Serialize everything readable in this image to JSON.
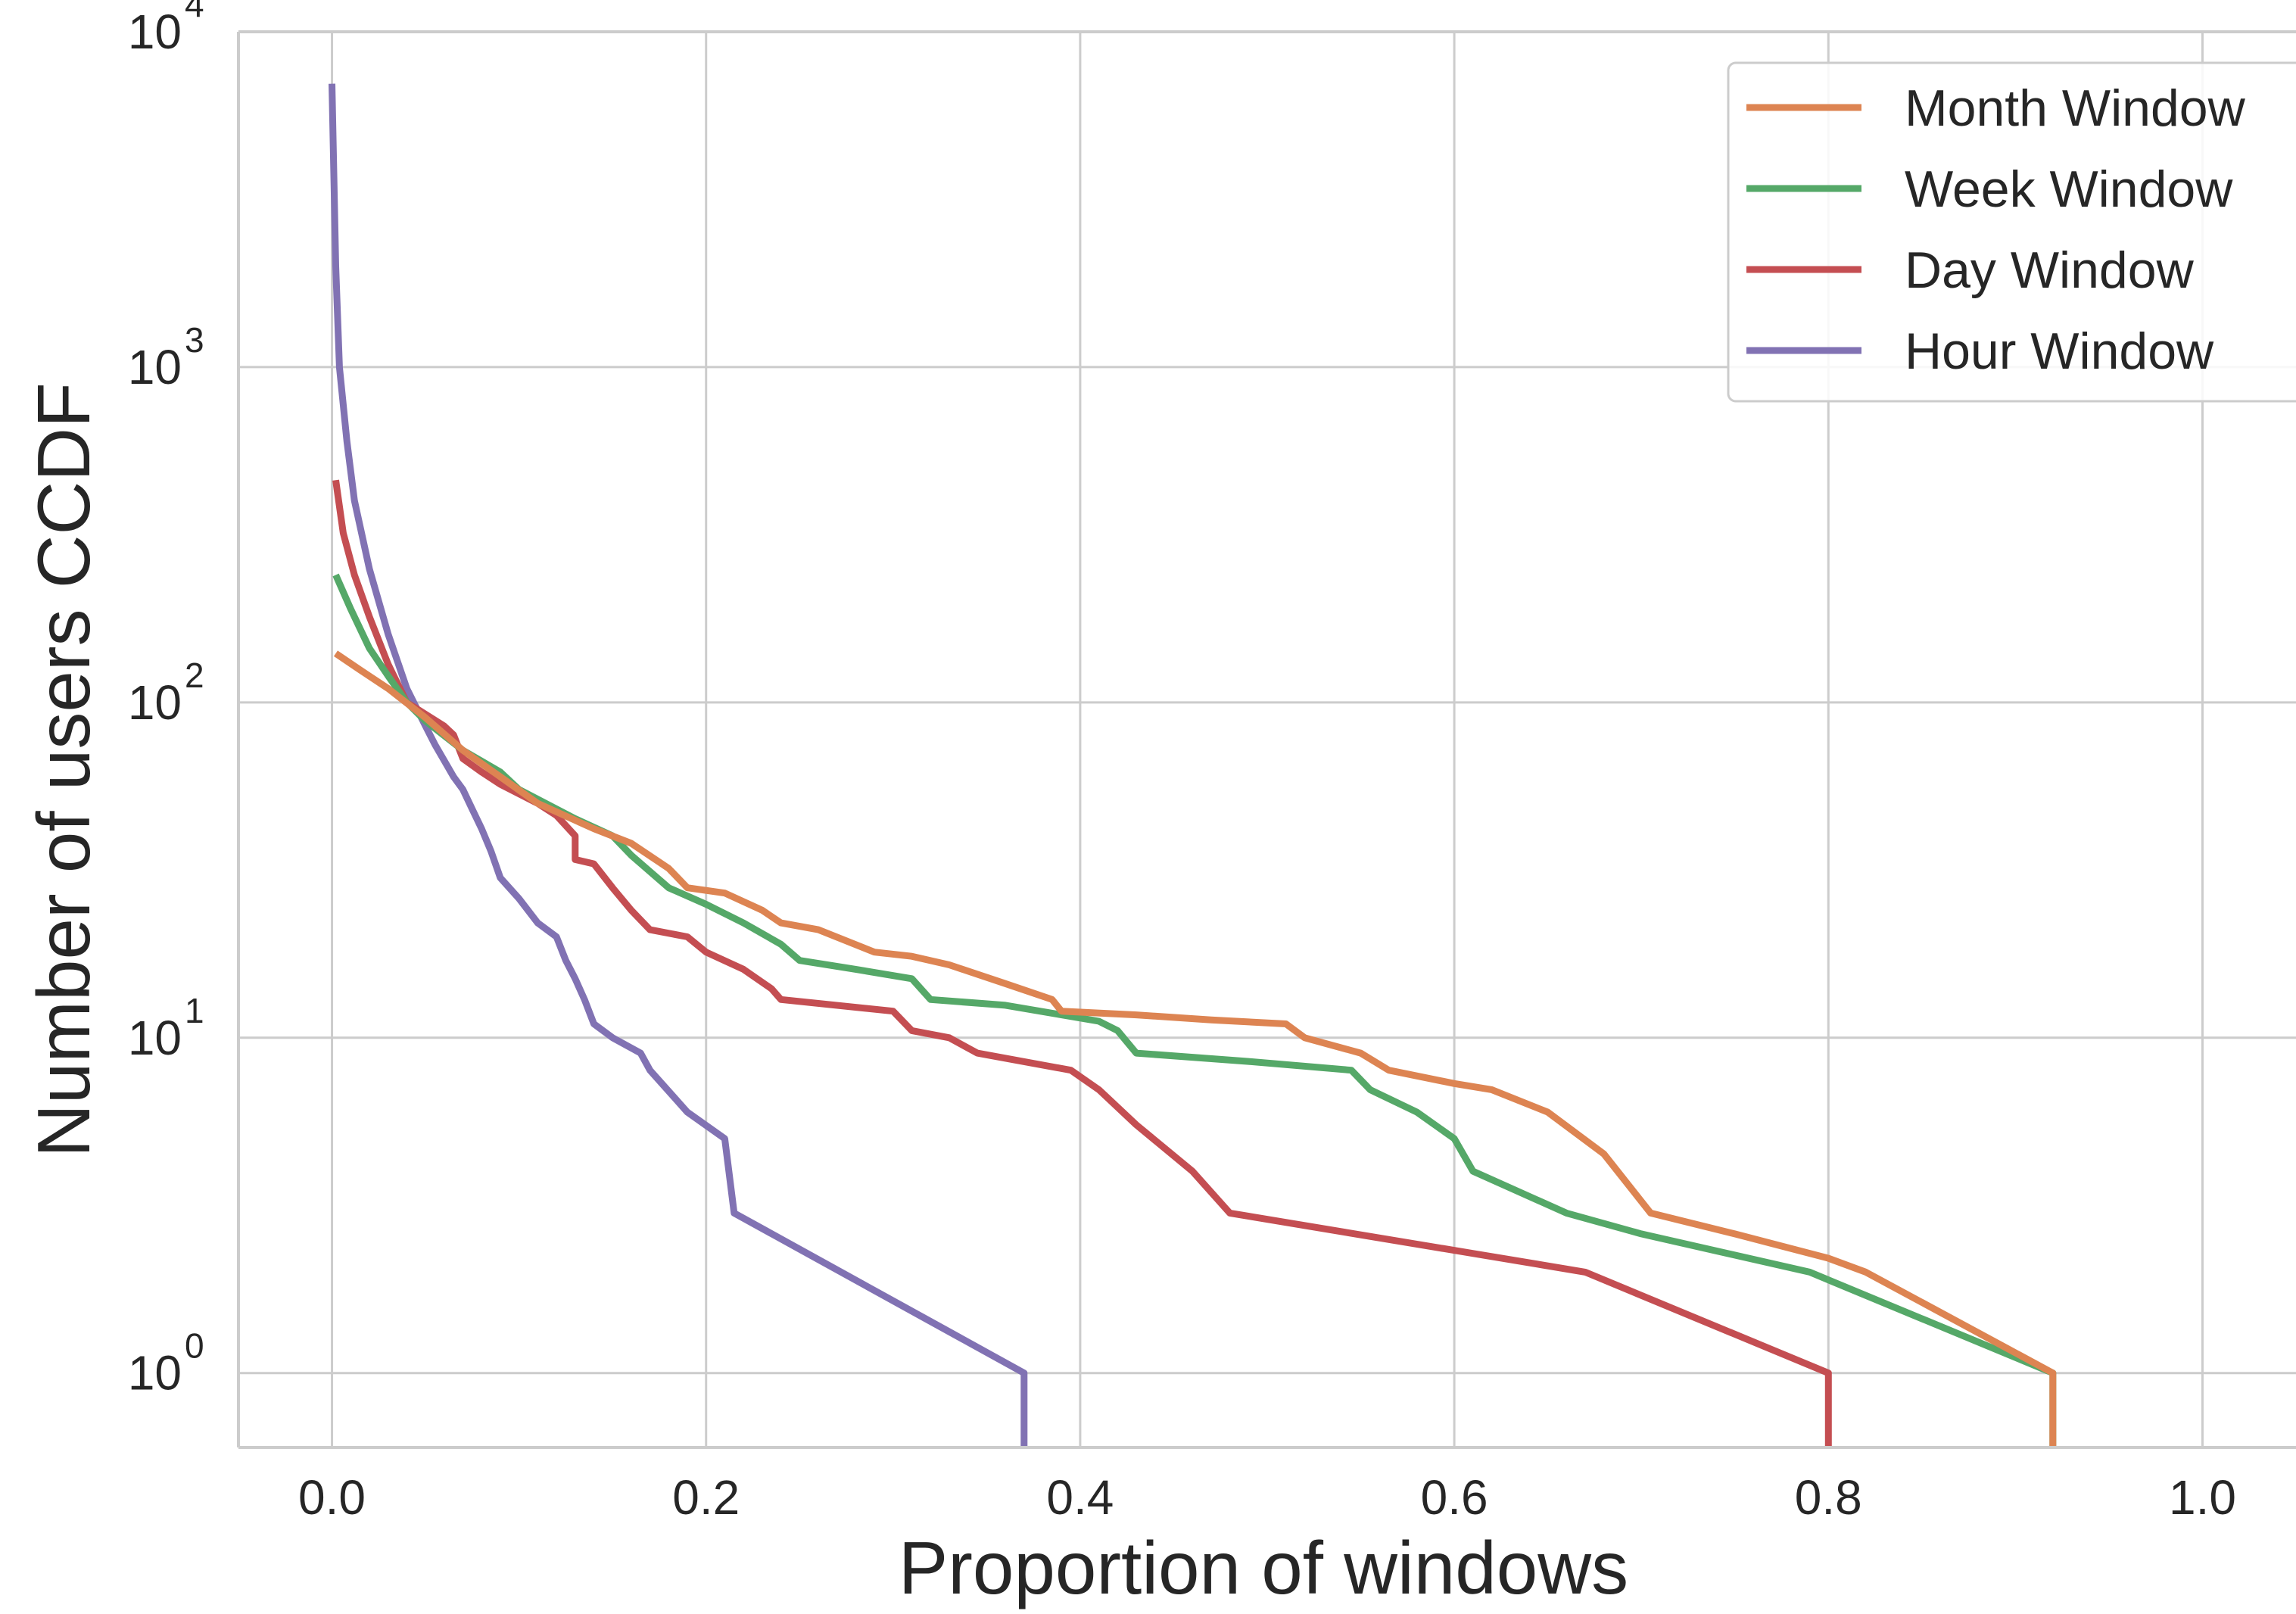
{
  "chart_data": {
    "type": "line",
    "title": "",
    "xlabel": "Proportion of windows",
    "ylabel": "Number of users CCDF",
    "xscale": "linear",
    "yscale": "log",
    "xlim": [
      -0.05,
      1.05
    ],
    "ylim": [
      0.6,
      10000
    ],
    "grid": true,
    "legend_position": "top-right",
    "x_ticks": [
      "0.0",
      "0.2",
      "0.4",
      "0.6",
      "0.8",
      "1.0"
    ],
    "y_ticks": [
      {
        "base": "10",
        "exp": "0",
        "value": 1
      },
      {
        "base": "10",
        "exp": "1",
        "value": 10
      },
      {
        "base": "10",
        "exp": "2",
        "value": 100
      },
      {
        "base": "10",
        "exp": "3",
        "value": 1000
      },
      {
        "base": "10",
        "exp": "4",
        "value": 10000
      }
    ],
    "series": [
      {
        "name": "Month Window",
        "color": "#dd8452",
        "points": [
          [
            0.002,
            140
          ],
          [
            0.015,
            125
          ],
          [
            0.03,
            110
          ],
          [
            0.05,
            90
          ],
          [
            0.07,
            72
          ],
          [
            0.09,
            60
          ],
          [
            0.11,
            50
          ],
          [
            0.14,
            42
          ],
          [
            0.16,
            38
          ],
          [
            0.18,
            32
          ],
          [
            0.19,
            28
          ],
          [
            0.21,
            27
          ],
          [
            0.23,
            24
          ],
          [
            0.24,
            22
          ],
          [
            0.26,
            21
          ],
          [
            0.29,
            18
          ],
          [
            0.31,
            17.5
          ],
          [
            0.33,
            16.5
          ],
          [
            0.36,
            14.5
          ],
          [
            0.385,
            13
          ],
          [
            0.39,
            12
          ],
          [
            0.43,
            11.7
          ],
          [
            0.47,
            11.3
          ],
          [
            0.51,
            11
          ],
          [
            0.52,
            10
          ],
          [
            0.55,
            9
          ],
          [
            0.565,
            8
          ],
          [
            0.6,
            7.3
          ],
          [
            0.62,
            7
          ],
          [
            0.65,
            6
          ],
          [
            0.68,
            4.5
          ],
          [
            0.705,
            3
          ],
          [
            0.75,
            2.6
          ],
          [
            0.8,
            2.2
          ],
          [
            0.82,
            2
          ],
          [
            0.92,
            1
          ],
          [
            0.92,
            0.6
          ]
        ]
      },
      {
        "name": "Week Window",
        "color": "#55a868",
        "points": [
          [
            0.002,
            240
          ],
          [
            0.01,
            190
          ],
          [
            0.02,
            145
          ],
          [
            0.03,
            120
          ],
          [
            0.04,
            100
          ],
          [
            0.05,
            88
          ],
          [
            0.07,
            72
          ],
          [
            0.09,
            62
          ],
          [
            0.1,
            55
          ],
          [
            0.13,
            45
          ],
          [
            0.15,
            40
          ],
          [
            0.16,
            35
          ],
          [
            0.18,
            28
          ],
          [
            0.2,
            25
          ],
          [
            0.22,
            22
          ],
          [
            0.24,
            19
          ],
          [
            0.25,
            17
          ],
          [
            0.28,
            16
          ],
          [
            0.31,
            15
          ],
          [
            0.32,
            13
          ],
          [
            0.36,
            12.5
          ],
          [
            0.41,
            11.2
          ],
          [
            0.42,
            10.5
          ],
          [
            0.43,
            9
          ],
          [
            0.49,
            8.5
          ],
          [
            0.545,
            8
          ],
          [
            0.555,
            7
          ],
          [
            0.58,
            6
          ],
          [
            0.6,
            5
          ],
          [
            0.61,
            4
          ],
          [
            0.66,
            3
          ],
          [
            0.7,
            2.6
          ],
          [
            0.79,
            2
          ],
          [
            0.92,
            1
          ],
          [
            0.92,
            0.6
          ]
        ]
      },
      {
        "name": "Day Window",
        "color": "#c44e52",
        "points": [
          [
            0.002,
            460
          ],
          [
            0.006,
            320
          ],
          [
            0.012,
            240
          ],
          [
            0.02,
            180
          ],
          [
            0.03,
            130
          ],
          [
            0.04,
            100
          ],
          [
            0.06,
            85
          ],
          [
            0.065,
            80
          ],
          [
            0.07,
            68
          ],
          [
            0.08,
            62
          ],
          [
            0.09,
            57
          ],
          [
            0.11,
            50
          ],
          [
            0.12,
            46
          ],
          [
            0.13,
            40
          ],
          [
            0.13,
            34
          ],
          [
            0.14,
            33
          ],
          [
            0.15,
            28
          ],
          [
            0.16,
            24
          ],
          [
            0.17,
            21
          ],
          [
            0.19,
            20
          ],
          [
            0.2,
            18
          ],
          [
            0.22,
            16
          ],
          [
            0.235,
            14
          ],
          [
            0.24,
            13
          ],
          [
            0.3,
            12
          ],
          [
            0.31,
            10.5
          ],
          [
            0.33,
            10
          ],
          [
            0.345,
            9
          ],
          [
            0.395,
            8
          ],
          [
            0.41,
            7
          ],
          [
            0.43,
            5.5
          ],
          [
            0.46,
            4
          ],
          [
            0.48,
            3
          ],
          [
            0.67,
            2
          ],
          [
            0.8,
            1
          ],
          [
            0.8,
            0.6
          ]
        ]
      },
      {
        "name": "Hour Window",
        "color": "#8172b3",
        "points": [
          [
            0.0,
            7000
          ],
          [
            0.002,
            2000
          ],
          [
            0.004,
            1000
          ],
          [
            0.008,
            600
          ],
          [
            0.012,
            400
          ],
          [
            0.02,
            250
          ],
          [
            0.03,
            160
          ],
          [
            0.04,
            110
          ],
          [
            0.05,
            85
          ],
          [
            0.055,
            75
          ],
          [
            0.065,
            60
          ],
          [
            0.07,
            55
          ],
          [
            0.075,
            48
          ],
          [
            0.08,
            42
          ],
          [
            0.085,
            36
          ],
          [
            0.09,
            30
          ],
          [
            0.1,
            26
          ],
          [
            0.11,
            22
          ],
          [
            0.12,
            20
          ],
          [
            0.125,
            17
          ],
          [
            0.13,
            15
          ],
          [
            0.135,
            13
          ],
          [
            0.14,
            11
          ],
          [
            0.15,
            10
          ],
          [
            0.165,
            9
          ],
          [
            0.17,
            8
          ],
          [
            0.19,
            6
          ],
          [
            0.21,
            5
          ],
          [
            0.215,
            3
          ],
          [
            0.37,
            1
          ],
          [
            0.37,
            0.6
          ]
        ]
      }
    ]
  }
}
